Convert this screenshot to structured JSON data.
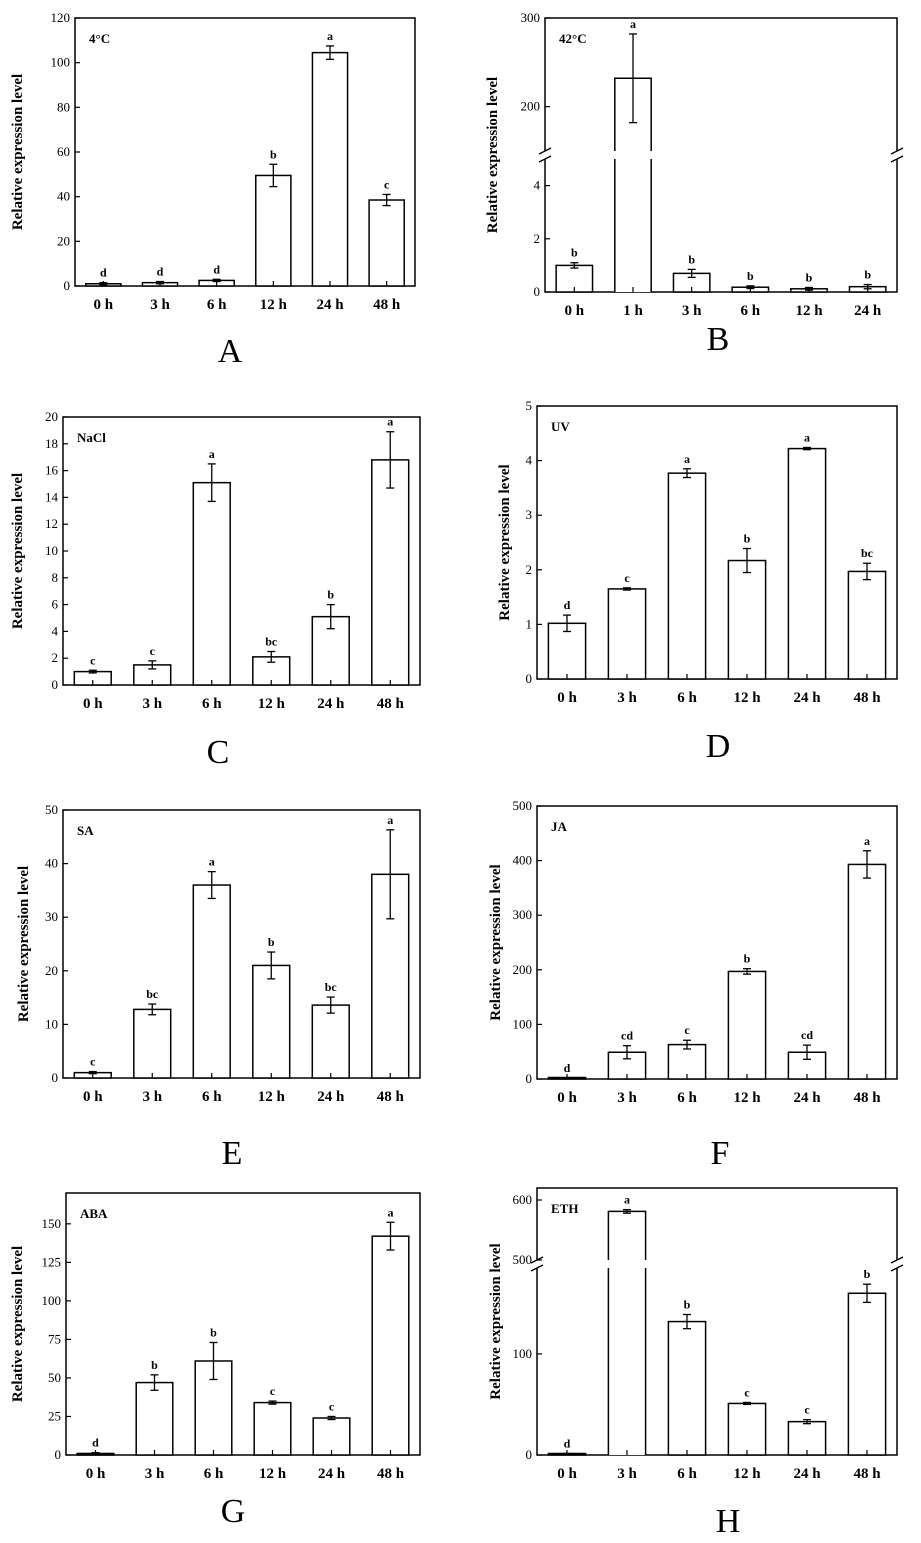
{
  "figure": {
    "description_axis": "Relative expression level"
  },
  "chart_data": [
    {
      "panel": "A",
      "type": "bar",
      "tag": "4°C",
      "ylabel": "Relative expression level",
      "categories": [
        "0 h",
        "3 h",
        "6 h",
        "12 h",
        "24 h",
        "48 h"
      ],
      "values": [
        1,
        1.5,
        2.5,
        49.5,
        104.5,
        38.5
      ],
      "errors": [
        0.5,
        0.5,
        0.5,
        5,
        3,
        2.5
      ],
      "letters": [
        "d",
        "d",
        "d",
        "b",
        "a",
        "c"
      ],
      "ylim": [
        0,
        120
      ],
      "yticks": [
        0,
        20,
        40,
        60,
        80,
        100,
        120
      ]
    },
    {
      "panel": "B",
      "type": "bar",
      "tag": "42°C",
      "ylabel": "Relative expression level",
      "categories": [
        "0 h",
        "1 h",
        "3 h",
        "6 h",
        "12 h",
        "24 h"
      ],
      "values": [
        1.0,
        232,
        0.7,
        0.18,
        0.12,
        0.2
      ],
      "errors": [
        0.1,
        50,
        0.15,
        0.05,
        0.05,
        0.08
      ],
      "letters": [
        "b",
        "a",
        "b",
        "b",
        "b",
        "b"
      ],
      "ylim": [
        0,
        300
      ],
      "axis_break": {
        "lower": [
          0,
          5
        ],
        "upper": [
          150,
          300
        ]
      },
      "yticks": [
        0,
        2,
        4,
        200,
        300
      ]
    },
    {
      "panel": "C",
      "type": "bar",
      "tag": "NaCl",
      "ylabel": "Relative expression level",
      "categories": [
        "0 h",
        "3 h",
        "6 h",
        "12 h",
        "24 h",
        "48 h"
      ],
      "values": [
        1.0,
        1.5,
        15.1,
        2.1,
        5.1,
        16.8
      ],
      "errors": [
        0.1,
        0.3,
        1.4,
        0.4,
        0.9,
        2.1
      ],
      "letters": [
        "c",
        "c",
        "a",
        "bc",
        "b",
        "a"
      ],
      "ylim": [
        0,
        20
      ],
      "yticks": [
        0,
        2,
        4,
        6,
        8,
        10,
        12,
        14,
        16,
        18,
        20
      ]
    },
    {
      "panel": "D",
      "type": "bar",
      "tag": "UV",
      "ylabel": "Relative expression level",
      "categories": [
        "0 h",
        "3 h",
        "6 h",
        "12 h",
        "24 h",
        "48 h"
      ],
      "values": [
        1.02,
        1.65,
        3.77,
        2.17,
        4.22,
        1.97
      ],
      "errors": [
        0.15,
        0.02,
        0.08,
        0.22,
        0.02,
        0.15
      ],
      "letters": [
        "d",
        "c",
        "a",
        "b",
        "a",
        "bc"
      ],
      "ylim": [
        0,
        5
      ],
      "yticks": [
        0,
        1,
        2,
        3,
        4,
        5
      ]
    },
    {
      "panel": "E",
      "type": "bar",
      "tag": "SA",
      "ylabel": "Relative expression level",
      "categories": [
        "0 h",
        "3 h",
        "6 h",
        "12 h",
        "24 h",
        "48 h"
      ],
      "values": [
        1.0,
        12.8,
        36.0,
        21.0,
        13.6,
        38.0
      ],
      "errors": [
        0.2,
        1.0,
        2.5,
        2.5,
        1.5,
        8.3
      ],
      "letters": [
        "c",
        "bc",
        "a",
        "b",
        "bc",
        "a"
      ],
      "ylim": [
        0,
        50
      ],
      "yticks": [
        0,
        10,
        20,
        30,
        40,
        50
      ]
    },
    {
      "panel": "F",
      "type": "bar",
      "tag": "JA",
      "ylabel": "Relative expression level",
      "categories": [
        "0 h",
        "3 h",
        "6 h",
        "12 h",
        "24 h",
        "48 h"
      ],
      "values": [
        1,
        49,
        63,
        197,
        49,
        393
      ],
      "errors": [
        0.5,
        12,
        8,
        5,
        13,
        25
      ],
      "letters": [
        "d",
        "cd",
        "c",
        "b",
        "cd",
        "a"
      ],
      "ylim": [
        0,
        500
      ],
      "yticks": [
        0,
        100,
        200,
        300,
        400,
        500
      ]
    },
    {
      "panel": "G",
      "type": "bar",
      "tag": "ABA",
      "ylabel": "Relative expression level",
      "categories": [
        "0 h",
        "3 h",
        "6 h",
        "12 h",
        "24 h",
        "48 h"
      ],
      "values": [
        1,
        47,
        61,
        34,
        24,
        142
      ],
      "errors": [
        0.5,
        5,
        12,
        1,
        1,
        9
      ],
      "letters": [
        "d",
        "b",
        "b",
        "c",
        "c",
        "a"
      ],
      "ylim": [
        0,
        170
      ],
      "yticks": [
        0,
        25,
        50,
        75,
        100,
        125,
        150
      ]
    },
    {
      "panel": "H",
      "type": "bar",
      "tag": "ETH",
      "ylabel": "Relative expression level",
      "categories": [
        "0 h",
        "3 h",
        "6 h",
        "12 h",
        "24 h",
        "48 h"
      ],
      "values": [
        1,
        581,
        132,
        51,
        33,
        160
      ],
      "errors": [
        0.5,
        3,
        7,
        1,
        2,
        9
      ],
      "letters": [
        "d",
        "a",
        "b",
        "c",
        "c",
        "b"
      ],
      "ylim": [
        0,
        620
      ],
      "axis_break": {
        "lower": [
          0,
          185
        ],
        "upper": [
          500,
          620
        ]
      },
      "yticks": [
        0,
        100,
        500,
        600
      ]
    }
  ]
}
